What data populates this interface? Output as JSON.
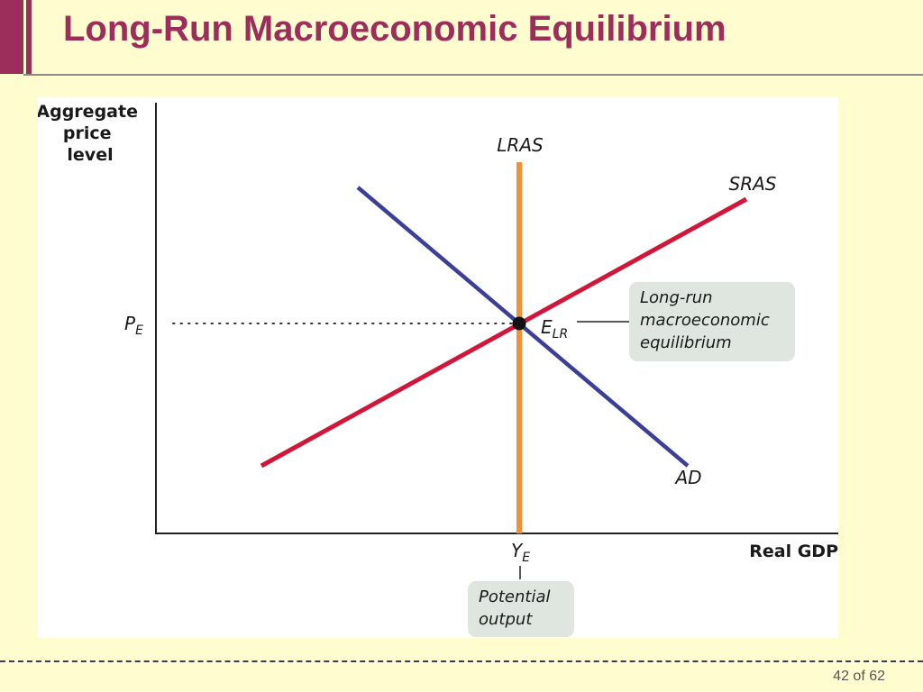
{
  "slide": {
    "title": "Long-Run Macroeconomic Equilibrium",
    "page_number": "42 of 62"
  },
  "colors": {
    "accent": "#9c2e5c",
    "background": "#fffdd0",
    "ad_curve": "#3b3f96",
    "sras_curve": "#d0173a",
    "lras_curve": "#f0923a",
    "callout_fill": "#dfe6df"
  },
  "diagram": {
    "y_axis_label": [
      "Aggregate",
      "price",
      "level"
    ],
    "x_axis_label": "Real GDP",
    "lras_label": "LRAS",
    "sras_label": "SRAS",
    "ad_label": "AD",
    "price_label": "P",
    "price_label_sub": "E",
    "output_label": "Y",
    "output_label_sub": "E",
    "equilibrium_label": "E",
    "equilibrium_label_sub": "LR",
    "equilibrium_callout": [
      "Long-run",
      "macroeconomic",
      "equilibrium"
    ],
    "output_callout": [
      "Potential",
      "output"
    ]
  }
}
